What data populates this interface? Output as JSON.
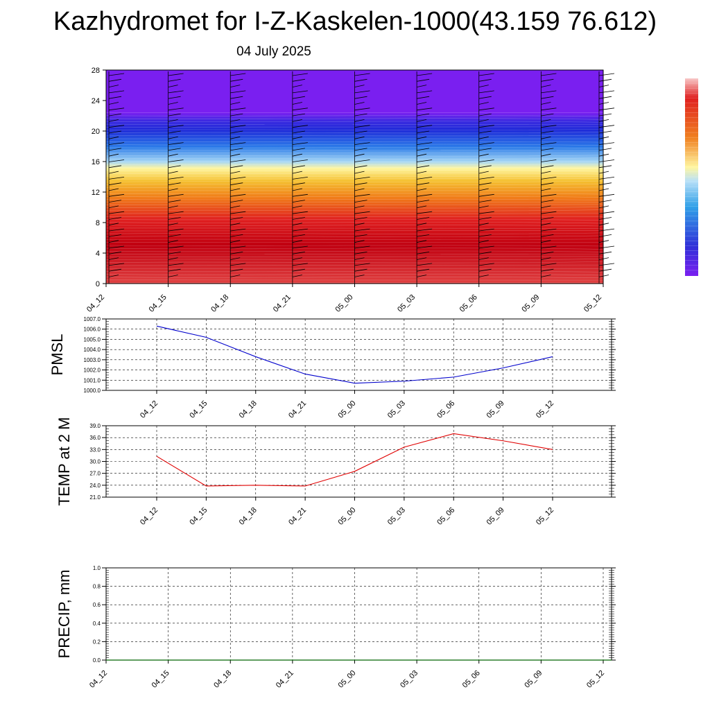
{
  "title": "Kazhydromet for I-Z-Kaskelen-1000(43.159 76.612)",
  "date": "04 July 2025",
  "chart_data": [
    {
      "type": "heatmap",
      "name": "vertical cross-section",
      "x_ticks": [
        "04_12",
        "04_15",
        "04_18",
        "04_21",
        "05_00",
        "05_03",
        "05_06",
        "05_09",
        "05_12"
      ],
      "y_ticks": [
        "0",
        "4",
        "8",
        "12",
        "16",
        "20",
        "24",
        "28"
      ],
      "ylim": [
        0,
        28
      ],
      "colors": {
        "top": "#7a1ff0",
        "dark_blue": "#1f2ad8",
        "blue": "#2a7ae8",
        "light_blue": "#a8d8f5",
        "yellow": "#fff6a0",
        "orange": "#f5a020",
        "red": "#e02020",
        "dark_red": "#c00010"
      },
      "wind_barbs": true
    },
    {
      "type": "line",
      "ylabel": "PMSL",
      "ylim": [
        1000.0,
        1007.0
      ],
      "y_ticks": [
        "1000.0",
        "1001.0",
        "1002.0",
        "1003.0",
        "1004.0",
        "1005.0",
        "1006.0",
        "1007.0"
      ],
      "y_tick_values": [
        1000,
        1001,
        1002,
        1003,
        1004,
        1005,
        1006,
        1007
      ],
      "x_ticks": [
        "04_12",
        "04_15",
        "04_18",
        "04_21",
        "05_00",
        "05_03",
        "05_06",
        "05_09",
        "05_12"
      ],
      "x": [
        "04_12",
        "04_15",
        "04_18",
        "04_21",
        "05_00",
        "05_03",
        "05_06",
        "05_09",
        "05_12"
      ],
      "values": [
        1006.3,
        1005.2,
        1003.3,
        1001.6,
        1000.7,
        1000.9,
        1001.3,
        1002.2,
        1003.3
      ],
      "color": "#0000cc"
    },
    {
      "type": "line",
      "ylabel": "TEMP at 2 M",
      "ylim": [
        21.0,
        39.0
      ],
      "y_ticks": [
        "21.0",
        "24.0",
        "27.0",
        "30.0",
        "33.0",
        "36.0",
        "39.0"
      ],
      "y_tick_values": [
        21,
        24,
        27,
        30,
        33,
        36,
        39
      ],
      "x_ticks": [
        "04_12",
        "04_15",
        "04_18",
        "04_21",
        "05_00",
        "05_03",
        "05_06",
        "05_09",
        "05_12"
      ],
      "x": [
        "04_12",
        "04_15",
        "04_18",
        "04_21",
        "05_00",
        "05_03",
        "05_06",
        "05_09",
        "05_12"
      ],
      "values": [
        31.3,
        23.8,
        24.0,
        23.8,
        27.5,
        33.6,
        37.0,
        35.2,
        33.0
      ],
      "color": "#e00000"
    },
    {
      "type": "line",
      "ylabel": "PRECIP, mm",
      "ylim": [
        0.0,
        1.0
      ],
      "y_ticks": [
        "0.0",
        "0.2",
        "0.4",
        "0.6",
        "0.8",
        "1.0"
      ],
      "y_tick_values": [
        0,
        0.2,
        0.4,
        0.6,
        0.8,
        1.0
      ],
      "x_ticks": [
        "04_12",
        "04_15",
        "04_18",
        "04_21",
        "05_00",
        "05_03",
        "05_06",
        "05_09",
        "05_12"
      ],
      "values": [
        0,
        0,
        0,
        0,
        0,
        0,
        0,
        0,
        0
      ],
      "color": "#006400"
    }
  ]
}
